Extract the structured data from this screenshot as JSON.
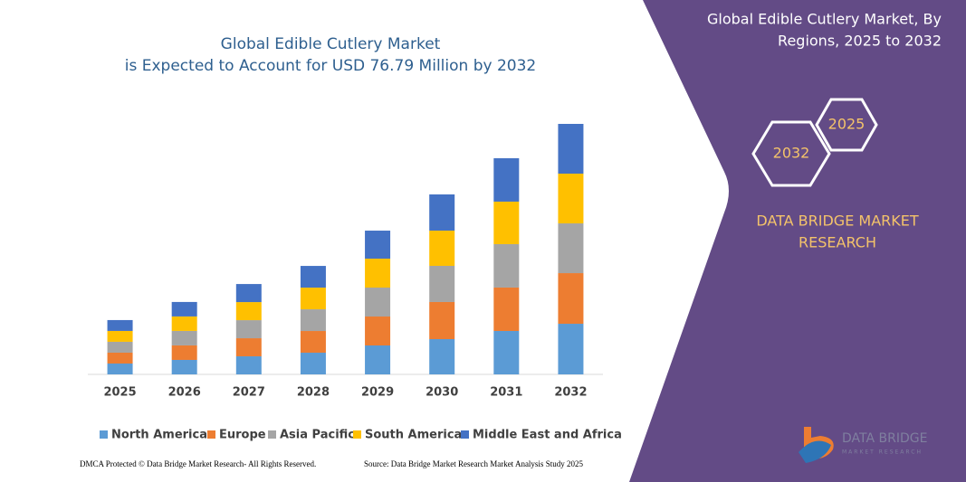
{
  "chart_data": {
    "type": "bar",
    "stacked": true,
    "title": "Global Edible Cutlery Market",
    "subtitle": "is Expected to Account for USD 76.79 Million by 2032",
    "categories": [
      "2025",
      "2026",
      "2027",
      "2028",
      "2029",
      "2030",
      "2031",
      "2032"
    ],
    "series": [
      {
        "name": "North America",
        "color": "#5b9bd5",
        "values": [
          3.33,
          4.44,
          5.54,
          6.65,
          8.87,
          10.81,
          13.31,
          15.52
        ]
      },
      {
        "name": "Europe",
        "color": "#ed7d31",
        "values": [
          3.33,
          4.44,
          5.54,
          6.65,
          8.87,
          11.37,
          13.31,
          15.52
        ]
      },
      {
        "name": "Asia Pacific",
        "color": "#a5a5a5",
        "values": [
          3.33,
          4.44,
          5.54,
          6.65,
          8.87,
          11.09,
          13.31,
          15.25
        ]
      },
      {
        "name": "South America",
        "color": "#ffc000",
        "values": [
          3.33,
          4.44,
          5.54,
          6.65,
          8.87,
          10.81,
          13.03,
          15.25
        ]
      },
      {
        "name": "Middle East and Africa",
        "color": "#4472c4",
        "values": [
          3.33,
          4.44,
          5.54,
          6.65,
          8.59,
          11.09,
          13.31,
          15.25
        ]
      }
    ],
    "legend": "bottom"
  },
  "panel": {
    "heading": [
      "Global Edible Cutlery Market, By",
      "Regions, 2025 to 2032"
    ],
    "hexagons": [
      "2025",
      "2032"
    ],
    "brand": [
      "DATA BRIDGE MARKET",
      "RESEARCH"
    ],
    "logo": [
      "DATA BRIDGE",
      "MARKET RESEARCH"
    ]
  },
  "footer": {
    "left": "DMCA Protected © Data Bridge Market Research- All Rights Reserved.",
    "right": "Source: Data Bridge Market Research Market Analysis Study 2025"
  }
}
